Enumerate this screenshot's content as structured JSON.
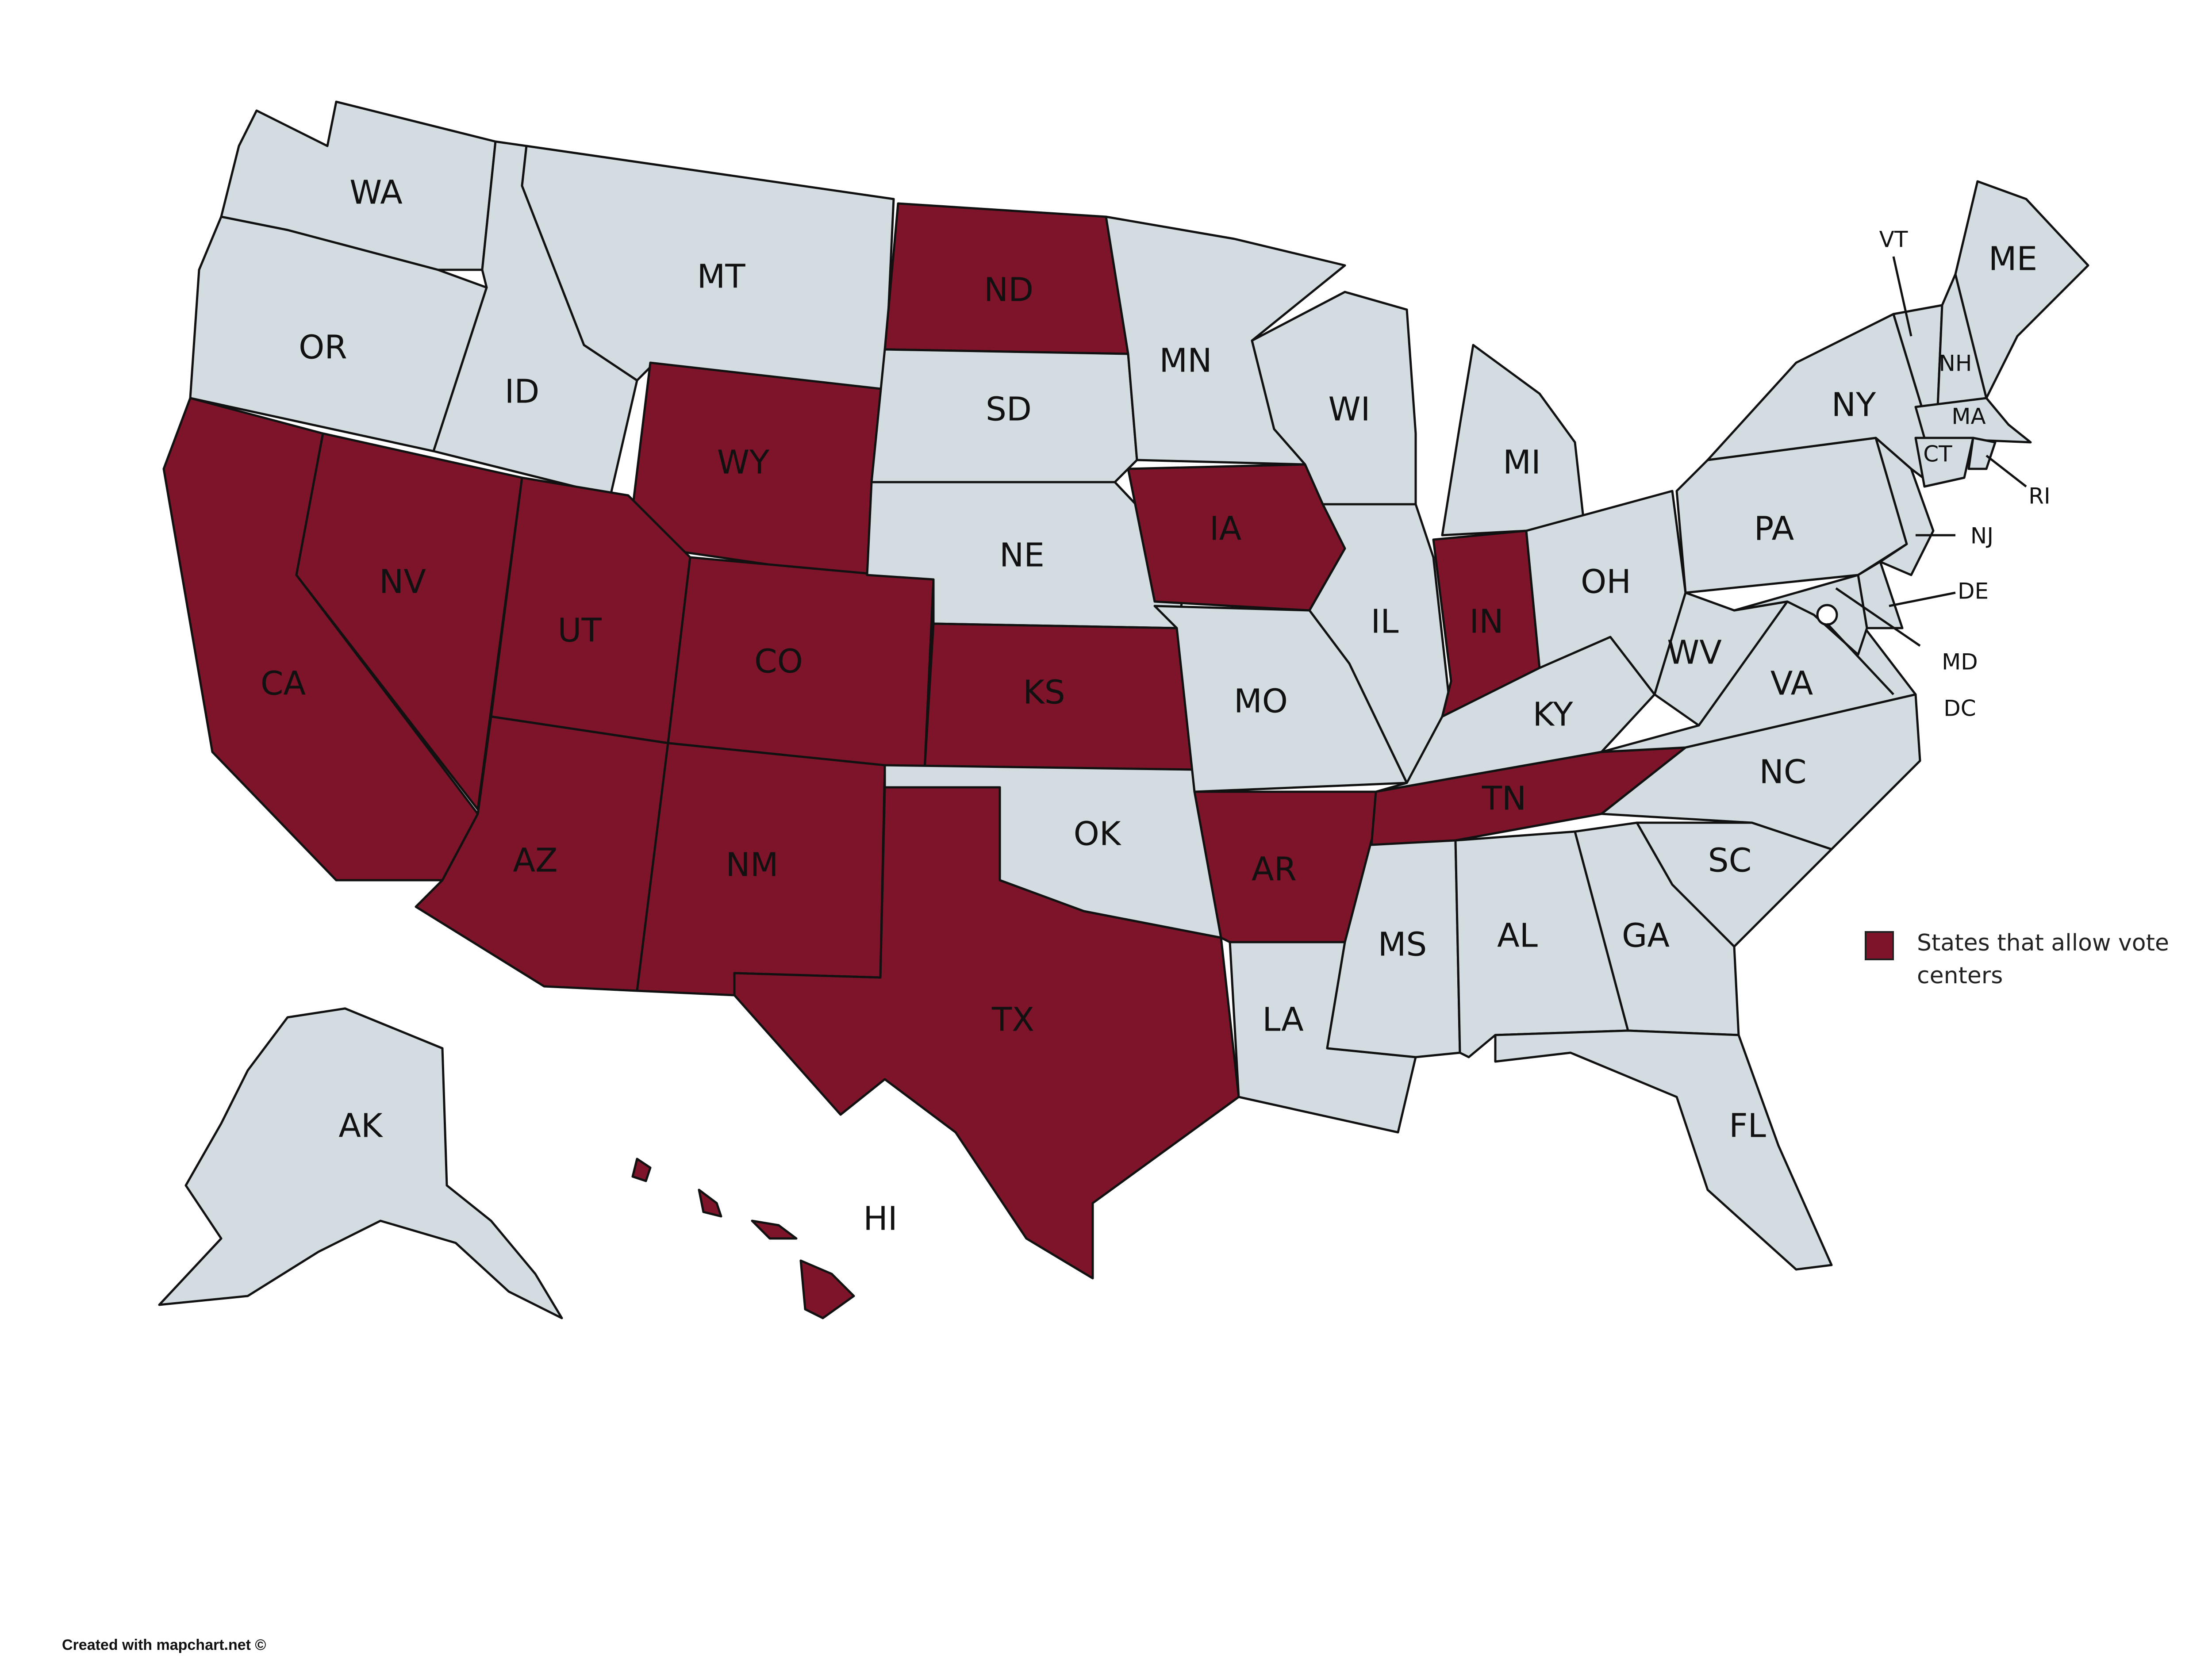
{
  "colors": {
    "highlight": "#7d1429",
    "default": "#d3dce0",
    "stroke": "#111111"
  },
  "legend": {
    "label": "States that allow vote centers",
    "color": "#7d1429"
  },
  "credit": "Created with mapchart.net ©",
  "states": [
    {
      "code": "WA",
      "highlighted": false
    },
    {
      "code": "OR",
      "highlighted": false
    },
    {
      "code": "CA",
      "highlighted": true
    },
    {
      "code": "NV",
      "highlighted": true
    },
    {
      "code": "ID",
      "highlighted": false
    },
    {
      "code": "MT",
      "highlighted": false
    },
    {
      "code": "WY",
      "highlighted": true
    },
    {
      "code": "UT",
      "highlighted": true
    },
    {
      "code": "AZ",
      "highlighted": true
    },
    {
      "code": "CO",
      "highlighted": true
    },
    {
      "code": "NM",
      "highlighted": true
    },
    {
      "code": "ND",
      "highlighted": true
    },
    {
      "code": "SD",
      "highlighted": false
    },
    {
      "code": "NE",
      "highlighted": false
    },
    {
      "code": "KS",
      "highlighted": true
    },
    {
      "code": "OK",
      "highlighted": false
    },
    {
      "code": "TX",
      "highlighted": true
    },
    {
      "code": "MN",
      "highlighted": false
    },
    {
      "code": "IA",
      "highlighted": true
    },
    {
      "code": "MO",
      "highlighted": false
    },
    {
      "code": "AR",
      "highlighted": true
    },
    {
      "code": "LA",
      "highlighted": false
    },
    {
      "code": "WI",
      "highlighted": false
    },
    {
      "code": "IL",
      "highlighted": false
    },
    {
      "code": "MS",
      "highlighted": false
    },
    {
      "code": "MI",
      "highlighted": false
    },
    {
      "code": "IN",
      "highlighted": true
    },
    {
      "code": "KY",
      "highlighted": false
    },
    {
      "code": "TN",
      "highlighted": true
    },
    {
      "code": "AL",
      "highlighted": false
    },
    {
      "code": "OH",
      "highlighted": false
    },
    {
      "code": "WV",
      "highlighted": false
    },
    {
      "code": "VA",
      "highlighted": false
    },
    {
      "code": "NC",
      "highlighted": false
    },
    {
      "code": "SC",
      "highlighted": false
    },
    {
      "code": "GA",
      "highlighted": false
    },
    {
      "code": "FL",
      "highlighted": false
    },
    {
      "code": "PA",
      "highlighted": false
    },
    {
      "code": "NY",
      "highlighted": false
    },
    {
      "code": "NJ",
      "highlighted": false
    },
    {
      "code": "DE",
      "highlighted": false
    },
    {
      "code": "MD",
      "highlighted": false
    },
    {
      "code": "DC",
      "highlighted": false
    },
    {
      "code": "VT",
      "highlighted": false
    },
    {
      "code": "NH",
      "highlighted": false
    },
    {
      "code": "ME",
      "highlighted": false
    },
    {
      "code": "MA",
      "highlighted": false
    },
    {
      "code": "CT",
      "highlighted": false
    },
    {
      "code": "RI",
      "highlighted": false
    },
    {
      "code": "AK",
      "highlighted": false
    },
    {
      "code": "HI",
      "highlighted": true
    }
  ]
}
